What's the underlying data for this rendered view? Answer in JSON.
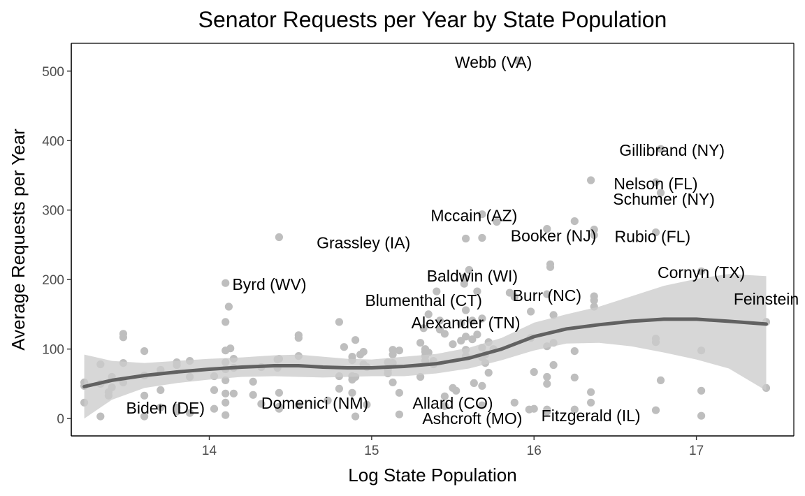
{
  "chart_data": {
    "type": "scatter",
    "title": "Senator Requests per Year by State Population",
    "xlabel": "Log State Population",
    "ylabel": "Average Requests per Year",
    "xlim": [
      13.15,
      17.6
    ],
    "ylim": [
      -25,
      540
    ],
    "xticks": [
      "14",
      "15",
      "16",
      "17"
    ],
    "xtick_values": [
      14,
      15,
      16,
      17
    ],
    "yticks": [
      "0",
      "100",
      "200",
      "300",
      "400",
      "500"
    ],
    "ytick_values": [
      0,
      100,
      200,
      300,
      400,
      500
    ],
    "grid": false,
    "legend": "none",
    "colors": {
      "points": "#bebebe",
      "smooth_line": "#616161",
      "ribbon": "#cccccc",
      "axis": "#000000"
    },
    "points": [
      [
        13.23,
        52
      ],
      [
        13.23,
        47
      ],
      [
        13.23,
        23
      ],
      [
        13.33,
        78
      ],
      [
        13.33,
        50
      ],
      [
        13.33,
        3
      ],
      [
        13.38,
        38
      ],
      [
        13.38,
        33
      ],
      [
        13.4,
        60
      ],
      [
        13.4,
        45
      ],
      [
        13.47,
        122
      ],
      [
        13.47,
        117
      ],
      [
        13.47,
        80
      ],
      [
        13.47,
        52
      ],
      [
        13.6,
        97
      ],
      [
        13.6,
        62
      ],
      [
        13.6,
        33
      ],
      [
        13.6,
        3
      ],
      [
        13.7,
        70
      ],
      [
        13.7,
        41
      ],
      [
        13.7,
        16
      ],
      [
        13.8,
        81
      ],
      [
        13.8,
        77
      ],
      [
        13.8,
        16
      ],
      [
        13.8,
        10
      ],
      [
        13.88,
        83
      ],
      [
        13.88,
        60
      ],
      [
        13.88,
        8
      ],
      [
        14.03,
        61
      ],
      [
        14.03,
        41
      ],
      [
        14.03,
        14
      ],
      [
        14.1,
        195
      ],
      [
        14.1,
        139
      ],
      [
        14.1,
        98
      ],
      [
        14.1,
        81
      ],
      [
        14.1,
        71
      ],
      [
        14.1,
        55
      ],
      [
        14.1,
        36
      ],
      [
        14.1,
        23
      ],
      [
        14.1,
        5
      ],
      [
        14.12,
        161
      ],
      [
        14.13,
        101
      ],
      [
        14.15,
        86
      ],
      [
        14.15,
        73
      ],
      [
        14.15,
        36
      ],
      [
        14.27,
        53
      ],
      [
        14.27,
        34
      ],
      [
        14.32,
        74
      ],
      [
        14.32,
        21
      ],
      [
        14.42,
        85
      ],
      [
        14.42,
        73
      ],
      [
        14.43,
        261
      ],
      [
        14.43,
        86
      ],
      [
        14.43,
        37
      ],
      [
        14.43,
        17
      ],
      [
        14.43,
        14
      ],
      [
        14.55,
        120
      ],
      [
        14.55,
        116
      ],
      [
        14.55,
        90
      ],
      [
        14.55,
        19
      ],
      [
        14.73,
        26
      ],
      [
        14.8,
        139
      ],
      [
        14.8,
        61
      ],
      [
        14.8,
        43
      ],
      [
        14.83,
        103
      ],
      [
        14.88,
        89
      ],
      [
        14.88,
        84
      ],
      [
        14.88,
        61
      ],
      [
        14.88,
        56
      ],
      [
        14.88,
        37
      ],
      [
        14.9,
        113
      ],
      [
        14.9,
        60
      ],
      [
        14.9,
        3
      ],
      [
        14.93,
        92
      ],
      [
        14.95,
        96
      ],
      [
        14.95,
        78
      ],
      [
        14.97,
        74
      ],
      [
        14.97,
        20
      ],
      [
        15.1,
        81
      ],
      [
        15.1,
        70
      ],
      [
        15.1,
        65
      ],
      [
        15.13,
        99
      ],
      [
        15.13,
        92
      ],
      [
        15.13,
        80
      ],
      [
        15.13,
        52
      ],
      [
        15.17,
        98
      ],
      [
        15.17,
        37
      ],
      [
        15.17,
        6
      ],
      [
        15.3,
        109
      ],
      [
        15.3,
        60
      ],
      [
        15.32,
        130
      ],
      [
        15.33,
        100
      ],
      [
        15.33,
        96
      ],
      [
        15.33,
        90
      ],
      [
        15.33,
        83
      ],
      [
        15.35,
        150
      ],
      [
        15.35,
        95
      ],
      [
        15.38,
        78
      ],
      [
        15.38,
        83
      ],
      [
        15.4,
        183
      ],
      [
        15.42,
        141
      ],
      [
        15.42,
        128
      ],
      [
        15.45,
        122
      ],
      [
        15.45,
        32
      ],
      [
        15.45,
        18
      ],
      [
        15.5,
        107
      ],
      [
        15.5,
        44
      ],
      [
        15.52,
        40
      ],
      [
        15.55,
        137
      ],
      [
        15.55,
        112
      ],
      [
        15.57,
        203
      ],
      [
        15.57,
        194
      ],
      [
        15.58,
        259
      ],
      [
        15.58,
        156
      ],
      [
        15.58,
        118
      ],
      [
        15.58,
        99
      ],
      [
        15.58,
        90
      ],
      [
        15.6,
        214
      ],
      [
        15.62,
        141
      ],
      [
        15.62,
        114
      ],
      [
        15.63,
        51
      ],
      [
        15.65,
        183
      ],
      [
        15.65,
        121
      ],
      [
        15.68,
        294
      ],
      [
        15.68,
        260
      ],
      [
        15.68,
        144
      ],
      [
        15.68,
        102
      ],
      [
        15.68,
        88
      ],
      [
        15.68,
        47
      ],
      [
        15.68,
        19
      ],
      [
        15.7,
        92
      ],
      [
        15.7,
        80
      ],
      [
        15.72,
        110
      ],
      [
        15.72,
        66
      ],
      [
        15.75,
        100
      ],
      [
        15.77,
        283
      ],
      [
        15.85,
        181
      ],
      [
        15.88,
        175
      ],
      [
        15.88,
        23
      ],
      [
        15.9,
        515
      ],
      [
        15.97,
        13
      ],
      [
        15.98,
        154
      ],
      [
        15.98,
        116
      ],
      [
        16.0,
        14
      ],
      [
        16.0,
        67
      ],
      [
        16.08,
        273
      ],
      [
        16.08,
        179
      ],
      [
        16.08,
        104
      ],
      [
        16.08,
        60
      ],
      [
        16.08,
        50
      ],
      [
        16.08,
        13
      ],
      [
        16.08,
        10
      ],
      [
        16.1,
        222
      ],
      [
        16.1,
        218
      ],
      [
        16.12,
        149
      ],
      [
        16.12,
        109
      ],
      [
        16.12,
        77
      ],
      [
        16.25,
        284
      ],
      [
        16.25,
        97
      ],
      [
        16.25,
        59
      ],
      [
        16.25,
        13
      ],
      [
        16.35,
        343
      ],
      [
        16.35,
        38
      ],
      [
        16.35,
        23
      ],
      [
        16.37,
        272
      ],
      [
        16.37,
        264
      ],
      [
        16.37,
        176
      ],
      [
        16.37,
        170
      ],
      [
        16.37,
        161
      ],
      [
        16.75,
        340
      ],
      [
        16.75,
        268
      ],
      [
        16.75,
        115
      ],
      [
        16.75,
        110
      ],
      [
        16.75,
        12
      ],
      [
        16.78,
        388
      ],
      [
        16.78,
        325
      ],
      [
        16.78,
        55
      ],
      [
        17.03,
        212
      ],
      [
        17.03,
        98
      ],
      [
        17.03,
        40
      ],
      [
        17.03,
        4
      ],
      [
        17.43,
        139
      ],
      [
        17.43,
        44
      ]
    ],
    "smooth": {
      "x": [
        13.23,
        13.4,
        13.6,
        13.8,
        14.0,
        14.2,
        14.4,
        14.55,
        14.7,
        14.85,
        15.0,
        15.2,
        15.4,
        15.6,
        15.8,
        16.0,
        16.2,
        16.4,
        16.6,
        16.8,
        17.0,
        17.2,
        17.43
      ],
      "y": [
        46,
        55,
        62,
        67,
        71,
        74,
        76,
        76,
        74,
        73,
        73,
        75,
        79,
        87,
        100,
        118,
        129,
        135,
        140,
        143,
        143,
        140,
        136
      ],
      "lower": [
        0,
        27,
        44,
        51,
        56,
        60,
        61,
        60,
        59,
        60,
        61,
        61,
        65,
        72,
        84,
        98,
        108,
        109,
        104,
        95,
        85,
        72,
        40
      ],
      "upper": [
        92,
        83,
        80,
        83,
        86,
        88,
        91,
        92,
        89,
        86,
        85,
        89,
        93,
        102,
        116,
        138,
        150,
        161,
        176,
        191,
        201,
        208,
        205
      ]
    },
    "annotations": [
      {
        "text": "Webb (VA)",
        "x": 15.75,
        "y": 513
      },
      {
        "text": "Gillibrand (NY)",
        "x": 16.85,
        "y": 386
      },
      {
        "text": "Nelson (FL)",
        "x": 16.75,
        "y": 338
      },
      {
        "text": "Schumer (NY)",
        "x": 16.8,
        "y": 316
      },
      {
        "text": "Mccain (AZ)",
        "x": 15.63,
        "y": 292
      },
      {
        "text": "Booker (NJ)",
        "x": 16.12,
        "y": 263
      },
      {
        "text": "Rubio (FL)",
        "x": 16.73,
        "y": 262
      },
      {
        "text": "Grassley (IA)",
        "x": 14.95,
        "y": 253
      },
      {
        "text": "Baldwin (WI)",
        "x": 15.62,
        "y": 205
      },
      {
        "text": "Cornyn (TX)",
        "x": 17.03,
        "y": 210
      },
      {
        "text": "Byrd (WV)",
        "x": 14.37,
        "y": 193
      },
      {
        "text": "Burr (NC)",
        "x": 16.08,
        "y": 177
      },
      {
        "text": "Feinstein",
        "x": 17.43,
        "y": 172
      },
      {
        "text": "Blumenthal (CT)",
        "x": 15.32,
        "y": 170
      },
      {
        "text": "Alexander (TN)",
        "x": 15.58,
        "y": 138
      },
      {
        "text": "Biden (DE)",
        "x": 13.73,
        "y": 15
      },
      {
        "text": "Domenici (NM)",
        "x": 14.65,
        "y": 22
      },
      {
        "text": "Allard (CO)",
        "x": 15.5,
        "y": 22
      },
      {
        "text": "Ashcroft (MO)",
        "x": 15.62,
        "y": 0
      },
      {
        "text": "Fitzgerald (IL)",
        "x": 16.35,
        "y": 4
      }
    ]
  }
}
